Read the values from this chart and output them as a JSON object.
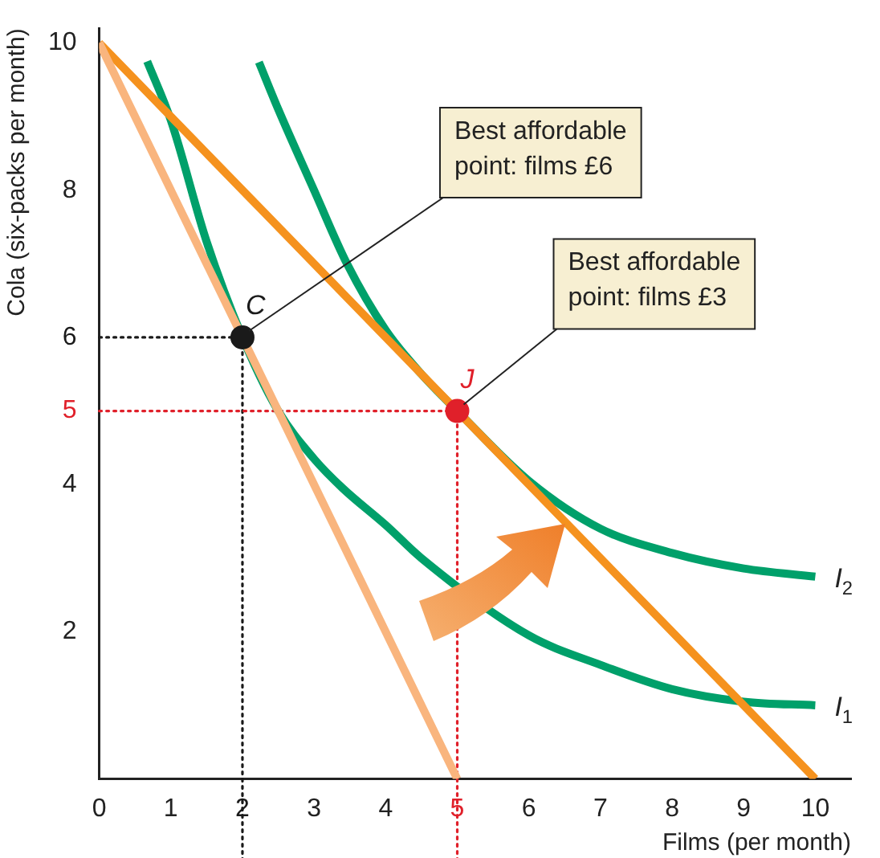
{
  "chart_data": {
    "type": "line",
    "xlabel": "Films (per month)",
    "ylabel": "Cola (six-packs per month)",
    "xlim": [
      0,
      10.5
    ],
    "ylim": [
      0,
      10.2
    ],
    "xticks": [
      0,
      1,
      2,
      3,
      4,
      5,
      6,
      7,
      8,
      9,
      10
    ],
    "yticks": [
      2,
      4,
      5,
      6,
      8,
      10
    ],
    "grid": false,
    "legend": false,
    "marker": "none",
    "line_style": "solid",
    "series": [
      {
        "color": "#f9b57e",
        "x": [
          0,
          5
        ],
        "values": [
          10,
          0
        ]
      },
      {
        "color": "#f5921e",
        "x": [
          0,
          10
        ],
        "values": [
          10,
          0
        ]
      },
      {
        "name": "I$_{1}$",
        "color": "#00a06a",
        "x": [
          0.67,
          1,
          1.5,
          2,
          2.5,
          3,
          3.4,
          4,
          4.5,
          6,
          7,
          8,
          9,
          10
        ],
        "values": [
          9.75,
          8.95,
          7.3,
          6,
          5,
          4.35,
          3.95,
          3.45,
          3,
          1.95,
          1.55,
          1.22,
          1.05,
          1
        ]
      },
      {
        "name": "I$_{2}$",
        "color": "#00a06a",
        "x": [
          2.23,
          2.5,
          3,
          3.46,
          4,
          4.5,
          5,
          6,
          7,
          8,
          9,
          10
        ],
        "values": [
          9.74,
          9.1,
          8,
          7,
          6.1,
          5.5,
          5,
          4.05,
          3.4,
          3.07,
          2.86,
          2.75
        ]
      },
      {
        "type": "scatter",
        "name": "C",
        "marker": "circle",
        "x": [
          2
        ],
        "values": [
          6
        ],
        "color": "#1a1a1a"
      },
      {
        "type": "scatter",
        "name": "J",
        "marker": "circle",
        "x": [
          5
        ],
        "values": [
          5
        ],
        "color": "#e0202a"
      }
    ],
    "ref_lines": [
      {
        "axis": "x",
        "value": 2,
        "color": "#1a1a1a",
        "line_style": "dotted"
      },
      {
        "axis": "y",
        "value": 6,
        "color": "#1a1a1a",
        "line_style": "dotted"
      },
      {
        "axis": "x",
        "value": 5,
        "color": "#e0202a",
        "line_style": "dotted"
      },
      {
        "axis": "y",
        "value": 5,
        "color": "#e0202a",
        "line_style": "dotted"
      }
    ],
    "annotations": [
      {
        "text": "Best affordable point: films £6",
        "x": 2,
        "y": 6
      },
      {
        "text": "Best affordable point: films £3",
        "x": 5,
        "y": 5
      }
    ]
  }
}
